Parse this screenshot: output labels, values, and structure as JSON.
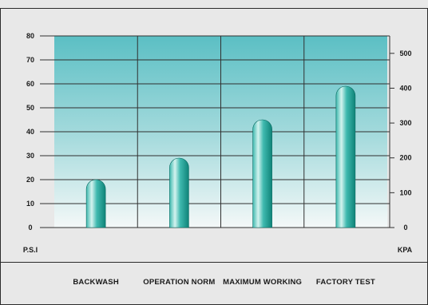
{
  "chart_data": {
    "type": "bar",
    "title": "",
    "categories": [
      "BACKWASH",
      "OPERATION NORM",
      "MAXIMUM WORKING",
      "FACTORY TEST"
    ],
    "series": [
      {
        "values": [
          20,
          29,
          45,
          59
        ]
      }
    ],
    "ylim": [
      0,
      80
    ],
    "yticks": [
      0,
      10,
      20,
      30,
      40,
      50,
      60,
      70,
      80
    ],
    "ylabel": "P.S.I",
    "y2lim": [
      0,
      550
    ],
    "y2ticks": [
      0,
      100,
      200,
      300,
      400,
      500
    ],
    "y2label": "KPA",
    "grid": true,
    "legend": "none"
  },
  "colors": {
    "panel_top": "#5bbfc4",
    "panel_bottom": "#f4f8f8",
    "bar_light": "#d4f3ef",
    "bar_mid": "#3fb9af",
    "bar_dark": "#0f8378",
    "frame": "#2b2b2b",
    "grid": "#303030"
  }
}
